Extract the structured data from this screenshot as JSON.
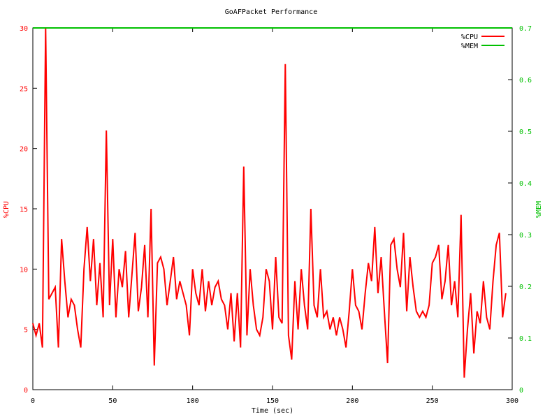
{
  "chart_data": {
    "type": "line",
    "title": "GoAFPacket Performance",
    "xlabel": "Time (sec)",
    "ylabel": "%CPU",
    "y2label": "%MEM",
    "xlim": [
      0,
      300
    ],
    "xticks": [
      0,
      50,
      100,
      150,
      200,
      250,
      300
    ],
    "ylim": [
      0,
      30
    ],
    "yticks": [
      0,
      5,
      10,
      15,
      20,
      25,
      30
    ],
    "y2lim": [
      0,
      0.7
    ],
    "y2ticks": [
      0,
      0.1,
      0.2,
      0.3,
      0.4,
      0.5,
      0.6,
      0.7
    ],
    "legend": "top-right",
    "grid": false,
    "series": [
      {
        "name": "%CPU",
        "color": "#ff0000",
        "x": [
          0,
          2,
          4,
          6,
          8,
          10,
          12,
          14,
          16,
          18,
          20,
          22,
          24,
          26,
          28,
          30,
          32,
          34,
          36,
          38,
          40,
          42,
          44,
          46,
          48,
          50,
          52,
          54,
          56,
          58,
          60,
          62,
          64,
          66,
          68,
          70,
          72,
          74,
          76,
          78,
          80,
          82,
          84,
          86,
          88,
          90,
          92,
          94,
          96,
          98,
          100,
          102,
          104,
          106,
          108,
          110,
          112,
          114,
          116,
          118,
          120,
          122,
          124,
          126,
          128,
          130,
          132,
          134,
          136,
          138,
          140,
          142,
          144,
          146,
          148,
          150,
          152,
          154,
          156,
          158,
          160,
          162,
          164,
          166,
          168,
          170,
          172,
          174,
          176,
          178,
          180,
          182,
          184,
          186,
          188,
          190,
          192,
          194,
          196,
          198,
          200,
          202,
          204,
          206,
          208,
          210,
          212,
          214,
          216,
          218,
          220,
          222,
          224,
          226,
          228,
          230,
          232,
          234,
          236,
          238,
          240,
          242,
          244,
          246,
          248,
          250,
          252,
          254,
          256,
          258,
          260,
          262,
          264,
          266,
          268,
          270,
          272,
          274,
          276,
          278,
          280,
          282,
          284,
          286,
          288,
          290,
          292,
          294,
          296
        ],
        "values": [
          5.5,
          4.5,
          5.5,
          3.5,
          30,
          7.5,
          8,
          8.5,
          3.5,
          12.5,
          9,
          6,
          7.5,
          7,
          5,
          3.5,
          10,
          13.5,
          9,
          12.5,
          7,
          10.5,
          6,
          21.5,
          7,
          12.5,
          6,
          10,
          8.5,
          11.5,
          6,
          9.5,
          13,
          6.5,
          8.5,
          12,
          6,
          15,
          2,
          10.5,
          11,
          10,
          7,
          9,
          11,
          7.5,
          9,
          8,
          7,
          4.5,
          10,
          8,
          7,
          10,
          6.5,
          9,
          7,
          8.5,
          9,
          7.5,
          7,
          5,
          8,
          4,
          8,
          3.5,
          18.5,
          4.5,
          10,
          7,
          5,
          4.5,
          6,
          10,
          9,
          5,
          11,
          6,
          5.5,
          27,
          4.5,
          2.5,
          9,
          5,
          10,
          7,
          5,
          15,
          7,
          6,
          10,
          6,
          6.5,
          5,
          6,
          4.5,
          6,
          5,
          3.5,
          6.5,
          10,
          7,
          6.5,
          5,
          8,
          10.5,
          9,
          13.5,
          8,
          11,
          6.5,
          2.2,
          12,
          12.5,
          10,
          8.5,
          13,
          6.5,
          11,
          8.5,
          6.5,
          6,
          6.5,
          6,
          7,
          10.5,
          11,
          12,
          7.5,
          9,
          12,
          7,
          9,
          6,
          14.5,
          1,
          5,
          8,
          3,
          6.5,
          5.5,
          9,
          6,
          5,
          9,
          12,
          13,
          6,
          8
        ]
      },
      {
        "name": "%MEM",
        "color": "#00c000",
        "axis": "y2",
        "x": [
          0,
          300
        ],
        "values": [
          0.7,
          0.7
        ]
      }
    ]
  }
}
